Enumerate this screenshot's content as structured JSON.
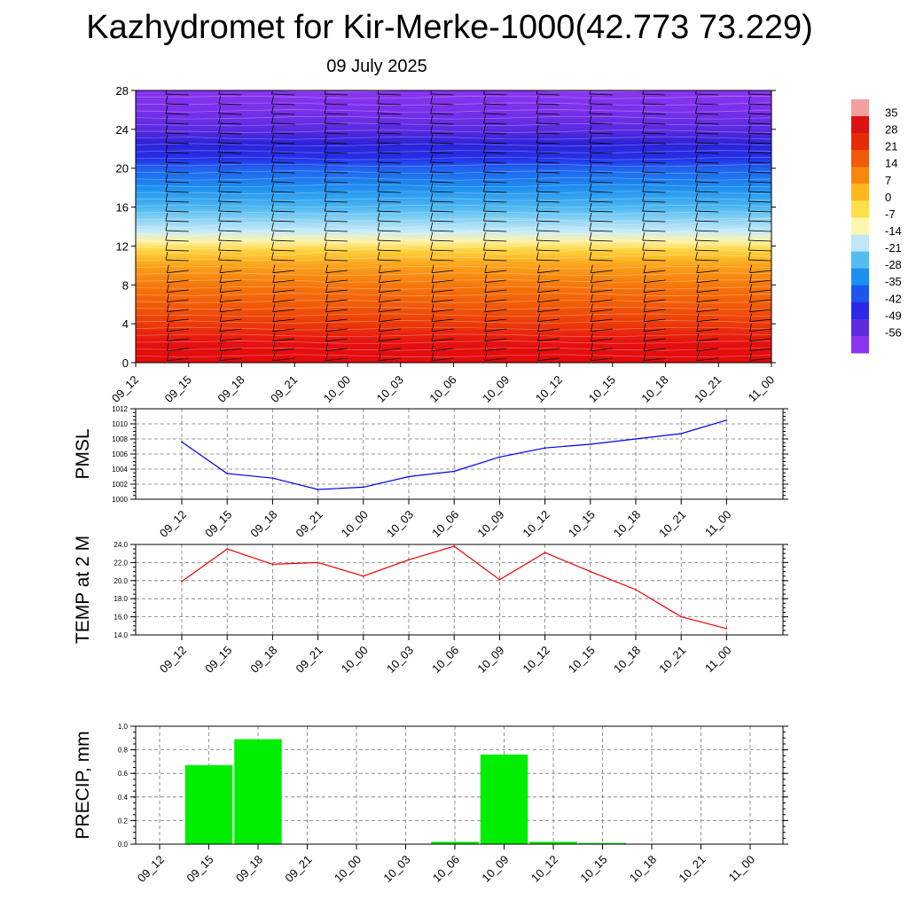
{
  "header": {
    "title": "Kazhydromet for Kir-Merke-1000(42.773 73.229)",
    "date": "09 July 2025"
  },
  "time_labels": [
    "09_12",
    "09_15",
    "09_18",
    "09_21",
    "10_00",
    "10_03",
    "10_06",
    "10_09",
    "10_12",
    "10_15",
    "10_18",
    "10_21",
    "11_00"
  ],
  "chart_data": [
    {
      "type": "heatmap",
      "x": [
        "09_12",
        "09_15",
        "09_18",
        "09_21",
        "10_00",
        "10_03",
        "10_06",
        "10_09",
        "10_12",
        "10_15",
        "10_18",
        "10_21",
        "11_00"
      ],
      "ylim": [
        0,
        28
      ],
      "yticks": [
        0,
        4,
        8,
        12,
        16,
        20,
        24,
        28
      ],
      "colorbar": {
        "labels": [
          "35",
          "28",
          "21",
          "14",
          "7",
          "0",
          "-7",
          "-14",
          "-21",
          "-28",
          "-35",
          "-42",
          "-49",
          "-56"
        ],
        "colors": [
          "#f2a0a0",
          "#dd1111",
          "#e62b06",
          "#f05a08",
          "#f8870c",
          "#fdb820",
          "#ffe04a",
          "#fff7b0",
          "#bfe7f5",
          "#54bdf0",
          "#1c8ff0",
          "#1f55ee",
          "#2a2ae8",
          "#5d2ce0",
          "#8a35ef"
        ]
      },
      "temperature_profile": {
        "heights": [
          0,
          2,
          4,
          6,
          8,
          10,
          11.5,
          12.5,
          13.5,
          16,
          18,
          20,
          21,
          22.5,
          24,
          26,
          28
        ],
        "colors": [
          "#e30a0a",
          "#e51010",
          "#ec3a08",
          "#f25c09",
          "#f6780b",
          "#fba21a",
          "#ffd23a",
          "#fff3a8",
          "#c8ecf7",
          "#4ab6f0",
          "#1d8ff0",
          "#1f60f0",
          "#2430e8",
          "#2d22d8",
          "#5a2ae0",
          "#7a30ec",
          "#8a35ef"
        ]
      },
      "wind_barbs": true
    },
    {
      "type": "line",
      "ylabel": "PMSL",
      "x": [
        "09_12",
        "09_15",
        "09_18",
        "09_21",
        "10_00",
        "10_03",
        "10_06",
        "10_09",
        "10_12",
        "10_15",
        "10_18",
        "10_21",
        "11_00"
      ],
      "values": [
        1007.6,
        1003.4,
        1002.8,
        1001.3,
        1001.6,
        1003.0,
        1003.7,
        1005.6,
        1006.8,
        1007.3,
        1008.0,
        1008.7,
        1010.5
      ],
      "ylim": [
        1000,
        1012
      ],
      "yticks": [
        "1000",
        "1002",
        "1004",
        "1006",
        "1008",
        "1010",
        "1012"
      ],
      "color": "#0000ee",
      "grid": true
    },
    {
      "type": "line",
      "ylabel": "TEMP at 2 M",
      "x": [
        "09_12",
        "09_15",
        "09_18",
        "09_21",
        "10_00",
        "10_03",
        "10_06",
        "10_09",
        "10_12",
        "10_15",
        "10_18",
        "10_21",
        "11_00"
      ],
      "values": [
        19.9,
        23.5,
        21.8,
        22.0,
        20.5,
        22.3,
        23.8,
        20.1,
        23.1,
        21.0,
        19.0,
        16.0,
        14.7
      ],
      "ylim": [
        14,
        24
      ],
      "yticks": [
        "14.0",
        "16.0",
        "18.0",
        "20.0",
        "22.0",
        "24.0"
      ],
      "color": "#ee0000",
      "grid": true
    },
    {
      "type": "bar",
      "ylabel": "PRECIP, mm",
      "categories": [
        "09_12",
        "09_15",
        "09_18",
        "09_21",
        "10_00",
        "10_03",
        "10_06",
        "10_09",
        "10_12",
        "10_15",
        "10_18",
        "10_21",
        "11_00"
      ],
      "values": [
        0,
        0.67,
        0.89,
        0,
        0,
        0,
        0.02,
        0.76,
        0.02,
        0.01,
        0,
        0,
        0
      ],
      "ylim": [
        0,
        1.0
      ],
      "yticks": [
        "0.0",
        "0.2",
        "0.4",
        "0.6",
        "0.8",
        "1.0"
      ],
      "color": "#00ee00",
      "grid": true
    }
  ]
}
